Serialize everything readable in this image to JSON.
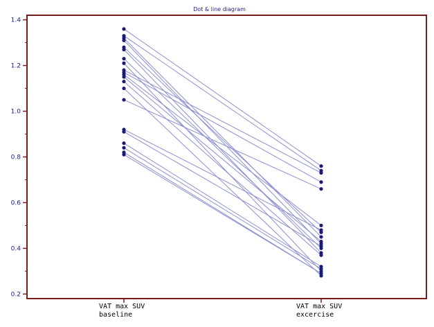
{
  "chart_data": {
    "type": "line",
    "title": "Dot & line diagram",
    "categories": [
      [
        "VAT max SUV",
        "baseline"
      ],
      [
        "VAT max SUV",
        "excercise"
      ]
    ],
    "ylim": [
      0.18,
      1.42
    ],
    "yticks": [
      0.2,
      0.4,
      0.6,
      0.8,
      1.0,
      1.2,
      1.4
    ],
    "ytick_labels": [
      "0.2",
      "0.4",
      "0.6",
      "0.8",
      "1.0",
      "1.2",
      "1.4"
    ],
    "xlabel": "",
    "ylabel": "",
    "grid": false,
    "colors": {
      "frame": "#7a1a1a",
      "line": "#8a8fd0",
      "point": "#1a1a7a",
      "text": "#1a1a8c"
    },
    "series": [
      {
        "values": [
          1.36,
          0.76
        ]
      },
      {
        "values": [
          1.33,
          0.74
        ]
      },
      {
        "values": [
          1.32,
          0.45
        ]
      },
      {
        "values": [
          1.31,
          0.42
        ]
      },
      {
        "values": [
          1.28,
          0.47
        ]
      },
      {
        "values": [
          1.27,
          0.38
        ]
      },
      {
        "values": [
          1.23,
          0.4
        ]
      },
      {
        "values": [
          1.21,
          0.3
        ]
      },
      {
        "values": [
          1.18,
          0.73
        ]
      },
      {
        "values": [
          1.17,
          0.69
        ]
      },
      {
        "values": [
          1.16,
          0.5
        ]
      },
      {
        "values": [
          1.15,
          0.43
        ]
      },
      {
        "values": [
          1.13,
          0.37
        ]
      },
      {
        "values": [
          1.1,
          0.28
        ]
      },
      {
        "values": [
          1.05,
          0.66
        ]
      },
      {
        "values": [
          0.92,
          0.48
        ]
      },
      {
        "values": [
          0.91,
          0.41
        ]
      },
      {
        "values": [
          0.86,
          0.32
        ]
      },
      {
        "values": [
          0.84,
          0.31
        ]
      },
      {
        "values": [
          0.82,
          0.29
        ]
      },
      {
        "values": [
          0.81,
          0.29
        ]
      }
    ]
  }
}
